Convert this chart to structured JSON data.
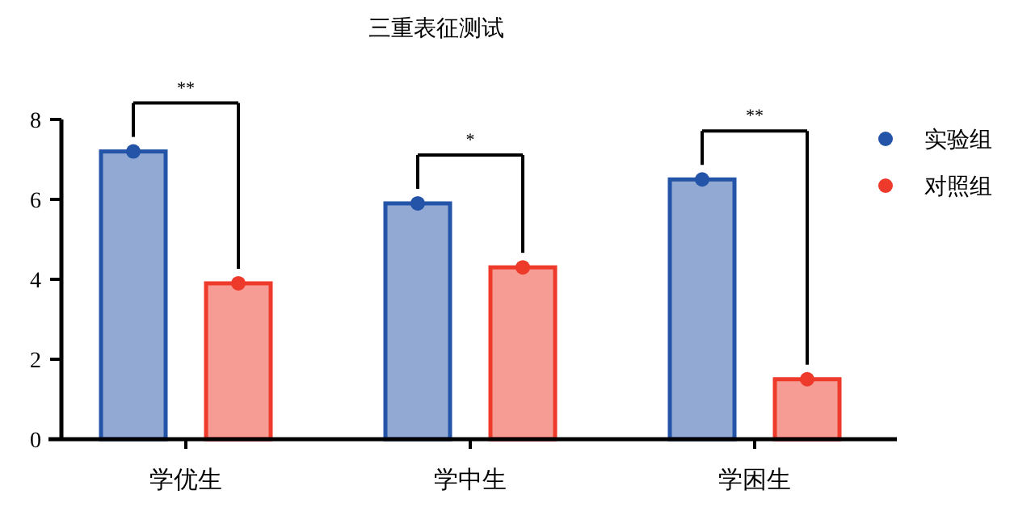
{
  "chart_data": {
    "type": "bar",
    "title": "三重表征测试",
    "categories": [
      "学优生",
      "学中生",
      "学困生"
    ],
    "series": [
      {
        "name": "实验组",
        "color": "#2354a8",
        "values": [
          7.2,
          5.9,
          6.5
        ]
      },
      {
        "name": "对照组",
        "color": "#ee3a2a",
        "values": [
          3.9,
          4.3,
          1.5
        ]
      },
      {
        "type": "scatter",
        "color": "#2354a8",
        "x": [
          "学优生",
          "学中生",
          "学困生"
        ],
        "values": [
          7.2,
          5.9,
          6.5
        ]
      },
      {
        "type": "scatter",
        "color": "#ee3a2a",
        "x": [
          "学优生",
          "学中生",
          "学困生"
        ],
        "values": [
          3.9,
          4.3,
          1.5
        ]
      }
    ],
    "ylim": [
      0,
      8
    ],
    "yticks": [
      0,
      2,
      4,
      6,
      8
    ],
    "grid": false,
    "legend": "right",
    "marker": "circle",
    "annotations": [
      "**",
      "*",
      "**"
    ]
  }
}
